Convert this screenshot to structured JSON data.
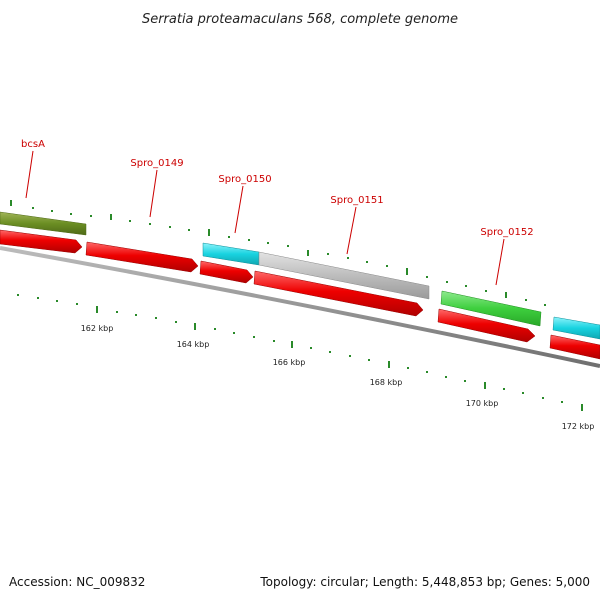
{
  "title": "Serratia proteamaculans 568, complete genome",
  "footer": {
    "accession": "Accession: NC_009832",
    "summary": "Topology: circular; Length: 5,448,853 bp; Genes: 5,000"
  },
  "gene_labels": [
    {
      "id": "bcsA",
      "text": "bcsA"
    },
    {
      "id": "spro0149",
      "text": "Spro_0149"
    },
    {
      "id": "spro0150",
      "text": "Spro_0150"
    },
    {
      "id": "spro0151",
      "text": "Spro_0151"
    },
    {
      "id": "spro0152",
      "text": "Spro_0152"
    }
  ],
  "kbp_ticks": [
    "162 kbp",
    "164 kbp",
    "166 kbp",
    "168 kbp",
    "170 kbp",
    "172 kbp"
  ],
  "colors": {
    "cds": "#ee0000",
    "cds_dark": "#aa0000",
    "backbone": "#888888",
    "tick": "#2a8a2a",
    "olive": "#6b8e23",
    "cyan": "#19d3e0",
    "gray": "#bdbdbd",
    "green": "#3ecf3e",
    "label": "#cc0000"
  }
}
